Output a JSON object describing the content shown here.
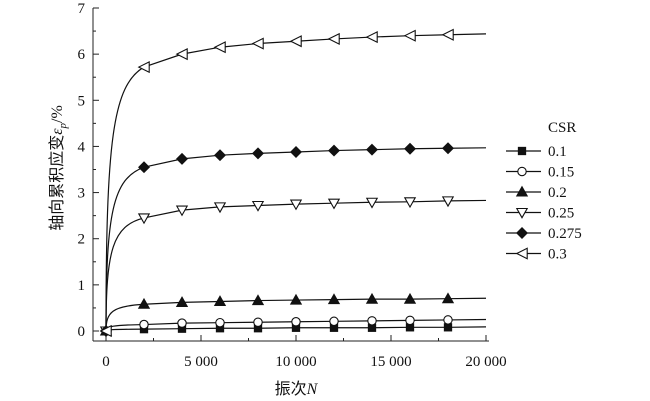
{
  "chart_data": {
    "type": "line",
    "title": "",
    "xlabel": "振次N",
    "xlabel_prefix": "振次",
    "xlabel_var": "N",
    "ylabel": "轴向累积应变εp/%",
    "ylabel_prefix": "轴向累积应变",
    "ylabel_var": "ε",
    "ylabel_sub": "p",
    "ylabel_suffix": "/%",
    "xlim": [
      -600,
      20000
    ],
    "ylim": [
      -0.25,
      7
    ],
    "x_ticks": [
      0,
      5000,
      10000,
      15000,
      20000
    ],
    "x_tick_labels": [
      "0",
      "5 000",
      "10 000",
      "15 000",
      "20 000"
    ],
    "y_ticks": [
      0,
      1,
      2,
      3,
      4,
      5,
      6,
      7
    ],
    "y_tick_labels": [
      "0",
      "1",
      "2",
      "3",
      "4",
      "5",
      "6",
      "7"
    ],
    "grid": false,
    "legend_title": "CSR",
    "legend_position": "right",
    "marker_x": [
      0,
      2000,
      4000,
      6000,
      8000,
      10000,
      12000,
      14000,
      16000,
      18000
    ],
    "series": [
      {
        "name": "0.1",
        "marker": "square-filled",
        "values": [
          0,
          0.04,
          0.05,
          0.06,
          0.06,
          0.07,
          0.07,
          0.07,
          0.08,
          0.08
        ],
        "end": 0.09
      },
      {
        "name": "0.15",
        "marker": "circle-open",
        "values": [
          0,
          0.14,
          0.17,
          0.18,
          0.19,
          0.2,
          0.21,
          0.22,
          0.23,
          0.24
        ],
        "end": 0.25
      },
      {
        "name": "0.2",
        "marker": "triangle-up-filled",
        "values": [
          0,
          0.58,
          0.62,
          0.64,
          0.66,
          0.67,
          0.68,
          0.69,
          0.69,
          0.7
        ],
        "end": 0.71
      },
      {
        "name": "0.25",
        "marker": "triangle-down-open",
        "values": [
          0,
          2.45,
          2.62,
          2.69,
          2.72,
          2.75,
          2.77,
          2.79,
          2.8,
          2.82
        ],
        "end": 2.83
      },
      {
        "name": "0.275",
        "marker": "diamond-filled",
        "values": [
          0,
          3.55,
          3.73,
          3.81,
          3.85,
          3.88,
          3.91,
          3.93,
          3.95,
          3.96
        ],
        "end": 3.97
      },
      {
        "name": "0.3",
        "marker": "triangle-left-open",
        "values": [
          0,
          5.72,
          6.0,
          6.15,
          6.23,
          6.28,
          6.33,
          6.37,
          6.4,
          6.42
        ],
        "end": 6.44
      }
    ]
  }
}
